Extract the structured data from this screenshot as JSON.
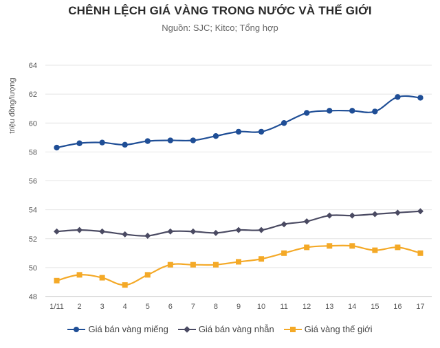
{
  "header": {
    "title": "CHÊNH LỆCH GIÁ VÀNG TRONG NƯỚC VÀ THẾ GIỚI",
    "subtitle": "Nguồn: SJC; Kitco; Tổng hợp"
  },
  "chart_data": {
    "type": "line",
    "ylabel": "triệu đồng/lượng",
    "xlabel": "",
    "ylim": [
      48,
      64
    ],
    "yticks": [
      48,
      50,
      52,
      54,
      56,
      58,
      60,
      62,
      64
    ],
    "grid": true,
    "legend_position": "bottom",
    "categories": [
      "1/11",
      "2",
      "3",
      "4",
      "5",
      "6",
      "7",
      "8",
      "9",
      "10",
      "11",
      "12",
      "13",
      "14",
      "15",
      "16",
      "17"
    ],
    "series": [
      {
        "name": "Giá bán vàng miếng",
        "color": "#1f4e96",
        "marker": "circle",
        "values": [
          58.3,
          58.6,
          58.65,
          58.5,
          58.75,
          58.8,
          58.8,
          59.1,
          59.4,
          59.4,
          60.0,
          60.7,
          60.85,
          60.85,
          60.8,
          61.8,
          61.75
        ]
      },
      {
        "name": "Giá bán vàng nhẫn",
        "color": "#4a4a62",
        "marker": "diamond",
        "values": [
          52.5,
          52.6,
          52.5,
          52.3,
          52.2,
          52.5,
          52.5,
          52.4,
          52.6,
          52.6,
          53.0,
          53.2,
          53.6,
          53.6,
          53.7,
          53.8,
          53.9
        ]
      },
      {
        "name": "Giá vàng thế giới",
        "color": "#f4a927",
        "marker": "square",
        "values": [
          49.1,
          49.5,
          49.3,
          48.8,
          49.5,
          50.2,
          50.2,
          50.2,
          50.4,
          50.6,
          51.0,
          51.4,
          51.5,
          51.5,
          51.2,
          51.4,
          51.0
        ]
      }
    ]
  }
}
